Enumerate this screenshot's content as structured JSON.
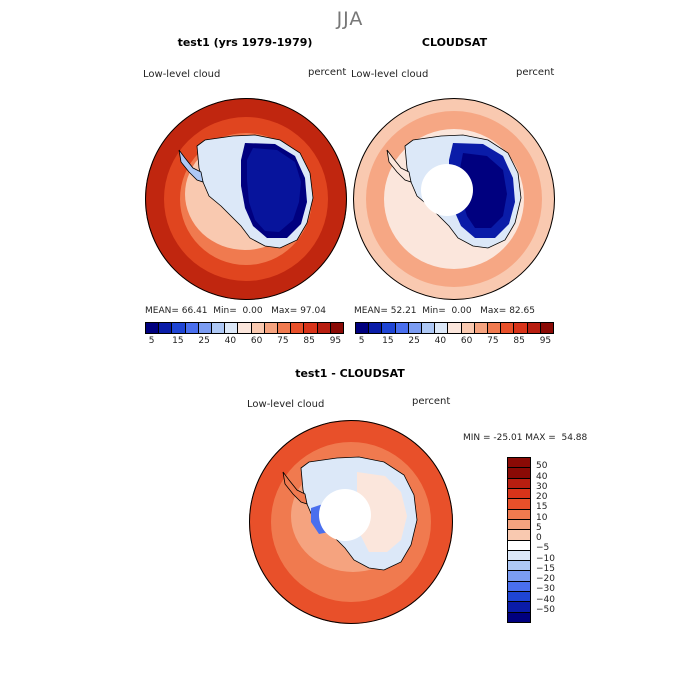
{
  "figure": {
    "title": "JJA"
  },
  "panels": [
    {
      "title": "test1 (yrs 1979-1979)",
      "left_label": "Low-level cloud",
      "right_label": "percent",
      "stats": {
        "mean_label": "MEAN=",
        "mean": "66.41",
        "min_label": "Min=",
        "min": "0.00",
        "max_label": "Max=",
        "max": "97.04"
      }
    },
    {
      "title": "CLOUDSAT",
      "left_label": "Low-level cloud",
      "right_label": "percent",
      "stats": {
        "mean_label": "MEAN=",
        "mean": "52.21",
        "min_label": "Min=",
        "min": "0.00",
        "max_label": "Max=",
        "max": "82.65"
      }
    },
    {
      "title": "test1 - CLOUDSAT",
      "left_label": "Low-level cloud",
      "right_label": "percent",
      "stats_line": "MIN = -25.01 MAX =  54.88"
    }
  ],
  "colorbar_abs": {
    "colors": [
      "#00007f",
      "#0a1ca8",
      "#1f45d4",
      "#4a6fee",
      "#7b9cf2",
      "#aec8f5",
      "#dce8f8",
      "#fbe6dc",
      "#f9c9b0",
      "#f5a37f",
      "#f07a4f",
      "#e8502a",
      "#d8341a",
      "#b81e10",
      "#8a0a05"
    ],
    "labels": [
      "5",
      "15",
      "25",
      "40",
      "60",
      "75",
      "85",
      "95"
    ]
  },
  "colorbar_diff": {
    "colors": [
      "#8a0a05",
      "#b81e10",
      "#d8341a",
      "#e8502a",
      "#f07a4f",
      "#f5a37f",
      "#f9c9b0",
      "#fbe6dc",
      "#dce8f8",
      "#aec8f5",
      "#7b9cf2",
      "#4a6fee",
      "#1f45d4",
      "#0a1ca8",
      "#00007f"
    ],
    "labels": [
      "50",
      "40",
      "30",
      "20",
      "15",
      "10",
      "5",
      "0",
      "−5",
      "−10",
      "−15",
      "−20",
      "−30",
      "−40",
      "−50"
    ]
  },
  "map_colors": {
    "red_dark": "#c0260f",
    "red": "#e0451f",
    "orange": "#f07a4f",
    "salmon": "#f5a37f",
    "peach": "#f9c9b0",
    "cream": "#fbe6dc",
    "lightblue": "#dce8f8",
    "sky": "#aec8f5",
    "blue": "#4a6fee",
    "navy": "#00007f",
    "royal": "#1f45d4"
  }
}
